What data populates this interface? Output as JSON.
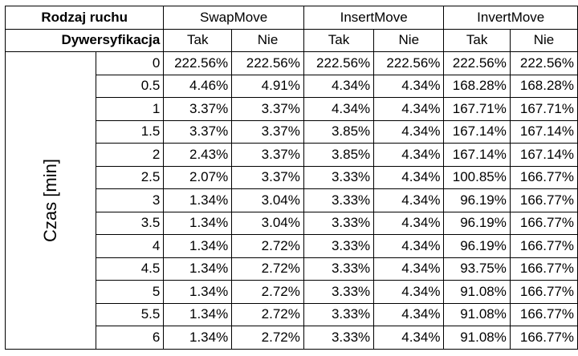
{
  "header": {
    "move_type_label": "Rodzaj ruchu",
    "diversification_label": "Dywersyfikacja",
    "moves": [
      "SwapMove",
      "InsertMove",
      "InvertMove"
    ],
    "options": [
      "Tak",
      "Nie",
      "Tak",
      "Nie",
      "Tak",
      "Nie"
    ]
  },
  "axis_label": "Czas [min]",
  "rows": [
    {
      "time": "0",
      "values": [
        "222.56%",
        "222.56%",
        "222.56%",
        "222.56%",
        "222.56%",
        "222.56%"
      ]
    },
    {
      "time": "0.5",
      "values": [
        "4.46%",
        "4.91%",
        "4.34%",
        "4.34%",
        "168.28%",
        "168.28%"
      ]
    },
    {
      "time": "1",
      "values": [
        "3.37%",
        "3.37%",
        "4.34%",
        "4.34%",
        "167.71%",
        "167.71%"
      ]
    },
    {
      "time": "1.5",
      "values": [
        "3.37%",
        "3.37%",
        "3.85%",
        "4.34%",
        "167.14%",
        "167.14%"
      ]
    },
    {
      "time": "2",
      "values": [
        "2.43%",
        "3.37%",
        "3.85%",
        "4.34%",
        "167.14%",
        "167.14%"
      ]
    },
    {
      "time": "2.5",
      "values": [
        "2.07%",
        "3.37%",
        "3.33%",
        "4.34%",
        "100.85%",
        "166.77%"
      ]
    },
    {
      "time": "3",
      "values": [
        "1.34%",
        "3.04%",
        "3.33%",
        "4.34%",
        "96.19%",
        "166.77%"
      ]
    },
    {
      "time": "3.5",
      "values": [
        "1.34%",
        "3.04%",
        "3.33%",
        "4.34%",
        "96.19%",
        "166.77%"
      ]
    },
    {
      "time": "4",
      "values": [
        "1.34%",
        "2.72%",
        "3.33%",
        "4.34%",
        "96.19%",
        "166.77%"
      ]
    },
    {
      "time": "4.5",
      "values": [
        "1.34%",
        "2.72%",
        "3.33%",
        "4.34%",
        "93.75%",
        "166.77%"
      ]
    },
    {
      "time": "5",
      "values": [
        "1.34%",
        "2.72%",
        "3.33%",
        "4.34%",
        "91.08%",
        "166.77%"
      ]
    },
    {
      "time": "5.5",
      "values": [
        "1.34%",
        "2.72%",
        "3.33%",
        "4.34%",
        "91.08%",
        "166.77%"
      ]
    },
    {
      "time": "6",
      "values": [
        "1.34%",
        "2.72%",
        "3.33%",
        "4.34%",
        "91.08%",
        "166.77%"
      ]
    }
  ]
}
